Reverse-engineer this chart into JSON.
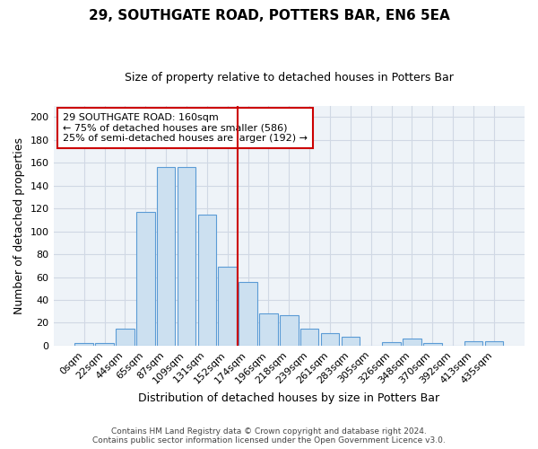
{
  "title": "29, SOUTHGATE ROAD, POTTERS BAR, EN6 5EA",
  "subtitle": "Size of property relative to detached houses in Potters Bar",
  "xlabel": "Distribution of detached houses by size in Potters Bar",
  "ylabel": "Number of detached properties",
  "bar_labels": [
    "0sqm",
    "22sqm",
    "44sqm",
    "65sqm",
    "87sqm",
    "109sqm",
    "131sqm",
    "152sqm",
    "174sqm",
    "196sqm",
    "218sqm",
    "239sqm",
    "261sqm",
    "283sqm",
    "305sqm",
    "326sqm",
    "348sqm",
    "370sqm",
    "392sqm",
    "413sqm",
    "435sqm"
  ],
  "bar_heights": [
    2,
    2,
    15,
    117,
    156,
    156,
    115,
    69,
    56,
    28,
    27,
    15,
    11,
    8,
    0,
    3,
    6,
    2,
    0,
    4,
    4
  ],
  "bar_color": "#cce0f0",
  "bar_edge_color": "#5b9bd5",
  "grid_color": "#d0d8e4",
  "bg_color": "#eef3f8",
  "vline_x": 7.5,
  "vline_color": "#cc0000",
  "annotation_text": "29 SOUTHGATE ROAD: 160sqm\n← 75% of detached houses are smaller (586)\n25% of semi-detached houses are larger (192) →",
  "annotation_box_color": "white",
  "annotation_box_edgecolor": "#cc0000",
  "ylim": [
    0,
    210
  ],
  "yticks": [
    0,
    20,
    40,
    60,
    80,
    100,
    120,
    140,
    160,
    180,
    200
  ],
  "footer_line1": "Contains HM Land Registry data © Crown copyright and database right 2024.",
  "footer_line2": "Contains public sector information licensed under the Open Government Licence v3.0."
}
